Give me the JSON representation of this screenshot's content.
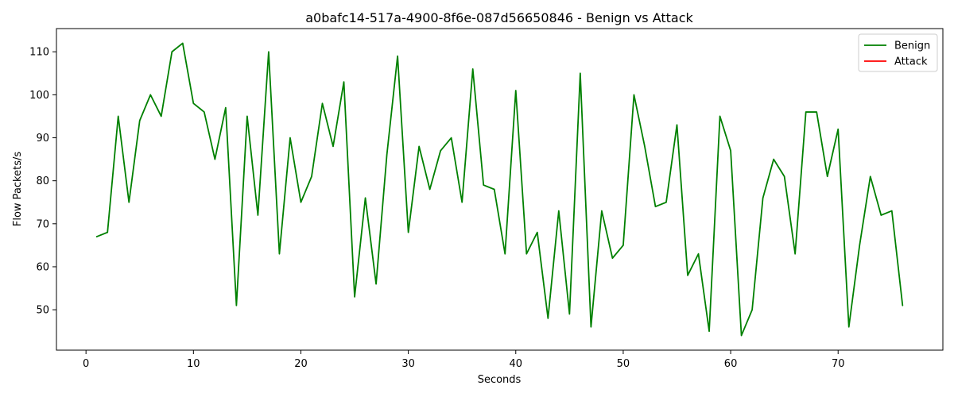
{
  "chart_data": {
    "type": "line",
    "title": "a0bafc14-517a-4900-8f6e-087d56650846 - Benign vs Attack",
    "xlabel": "Seconds",
    "ylabel": "Flow Packets/s",
    "xlim": [
      -2.75,
      79.75
    ],
    "ylim": [
      40.6,
      115.4
    ],
    "xticks": [
      0,
      10,
      20,
      30,
      40,
      50,
      60,
      70
    ],
    "yticks": [
      50,
      60,
      70,
      80,
      90,
      100,
      110
    ],
    "grid": false,
    "legend_position": "top-right",
    "series": [
      {
        "name": "Benign",
        "color": "#008000",
        "x": [
          1,
          2,
          3,
          4,
          5,
          6,
          7,
          8,
          9,
          10,
          11,
          12,
          13,
          14,
          15,
          16,
          17,
          18,
          19,
          20,
          21,
          22,
          23,
          24,
          25,
          26,
          27,
          28,
          29,
          30,
          31,
          32,
          33,
          34,
          35,
          36,
          37,
          38,
          39,
          40,
          41,
          42,
          43,
          44,
          45,
          46,
          47,
          48,
          49,
          50,
          51,
          52,
          53,
          54,
          55,
          56,
          57,
          58,
          59,
          60,
          61,
          62,
          63,
          64,
          65,
          66,
          67,
          68,
          69,
          70,
          71,
          72,
          73,
          74,
          75,
          76
        ],
        "y": [
          67,
          68,
          95,
          75,
          94,
          100,
          95,
          110,
          112,
          98,
          96,
          85,
          97,
          51,
          95,
          72,
          110,
          63,
          90,
          75,
          81,
          98,
          88,
          103,
          53,
          76,
          56,
          86,
          109,
          68,
          88,
          78,
          87,
          90,
          75,
          106,
          79,
          78,
          63,
          101,
          63,
          68,
          48,
          73,
          49,
          105,
          46,
          73,
          62,
          65,
          100,
          88,
          74,
          75,
          93,
          58,
          63,
          45,
          95,
          87,
          44,
          50,
          76,
          85,
          81,
          63,
          96,
          96,
          81,
          92,
          46,
          65,
          81,
          72,
          73,
          51
        ]
      },
      {
        "name": "Attack",
        "color": "#ff0000",
        "x": [],
        "y": []
      }
    ]
  }
}
